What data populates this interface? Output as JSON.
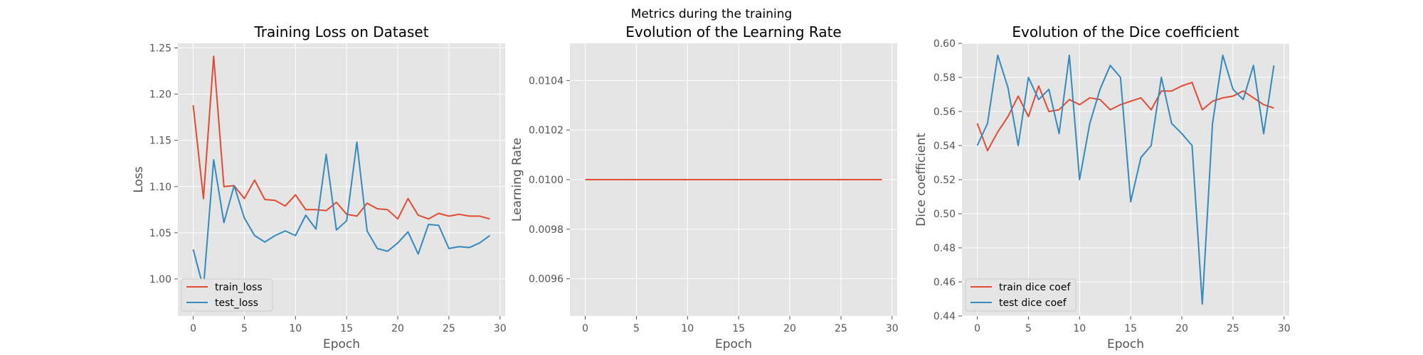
{
  "figure": {
    "suptitle": "Metrics during the training"
  },
  "colors": {
    "train": "#E24A33",
    "test": "#348ABD",
    "panel_bg": "#E5E5E5",
    "grid": "#FFFFFF",
    "tick_text": "#555555"
  },
  "chart_data": [
    {
      "type": "line",
      "title": "Training Loss on Dataset",
      "xlabel": "Epoch",
      "ylabel": "Loss",
      "xlim": [
        -1.5,
        30.5
      ],
      "ylim": [
        0.96,
        1.255
      ],
      "xticks": [
        0,
        5,
        10,
        15,
        20,
        25,
        30
      ],
      "yticks": [
        1.0,
        1.05,
        1.1,
        1.15,
        1.2,
        1.25
      ],
      "ytick_decimals": 2,
      "grid": true,
      "legend": "lower-left",
      "x": [
        0,
        1,
        2,
        3,
        4,
        5,
        6,
        7,
        8,
        9,
        10,
        11,
        12,
        13,
        14,
        15,
        16,
        17,
        18,
        19,
        20,
        21,
        22,
        23,
        24,
        25,
        26,
        27,
        28,
        29
      ],
      "series": [
        {
          "name": "train_loss",
          "color": "#E24A33",
          "values": [
            1.188,
            1.087,
            1.241,
            1.1,
            1.101,
            1.087,
            1.107,
            1.086,
            1.085,
            1.079,
            1.091,
            1.075,
            1.075,
            1.074,
            1.083,
            1.07,
            1.068,
            1.082,
            1.076,
            1.075,
            1.065,
            1.087,
            1.069,
            1.065,
            1.071,
            1.068,
            1.07,
            1.068,
            1.068,
            1.065
          ]
        },
        {
          "name": "test_loss",
          "color": "#348ABD",
          "values": [
            1.032,
            0.99,
            1.129,
            1.061,
            1.101,
            1.066,
            1.047,
            1.04,
            1.047,
            1.052,
            1.047,
            1.069,
            1.054,
            1.135,
            1.053,
            1.063,
            1.148,
            1.052,
            1.033,
            1.03,
            1.039,
            1.051,
            1.027,
            1.059,
            1.058,
            1.033,
            1.035,
            1.034,
            1.039,
            1.047
          ]
        }
      ]
    },
    {
      "type": "line",
      "title": "Evolution of the Learning Rate",
      "xlabel": "Epoch",
      "ylabel": "Learning Rate",
      "xlim": [
        -1.5,
        30.5
      ],
      "ylim": [
        0.00945,
        0.01055
      ],
      "xticks": [
        0,
        5,
        10,
        15,
        20,
        25,
        30
      ],
      "yticks": [
        0.0096,
        0.0098,
        0.01,
        0.0102,
        0.0104
      ],
      "ytick_decimals": 4,
      "grid": true,
      "x": [
        0,
        1,
        2,
        3,
        4,
        5,
        6,
        7,
        8,
        9,
        10,
        11,
        12,
        13,
        14,
        15,
        16,
        17,
        18,
        19,
        20,
        21,
        22,
        23,
        24,
        25,
        26,
        27,
        28,
        29
      ],
      "series": [
        {
          "color": "#E24A33",
          "values": [
            0.01,
            0.01,
            0.01,
            0.01,
            0.01,
            0.01,
            0.01,
            0.01,
            0.01,
            0.01,
            0.01,
            0.01,
            0.01,
            0.01,
            0.01,
            0.01,
            0.01,
            0.01,
            0.01,
            0.01,
            0.01,
            0.01,
            0.01,
            0.01,
            0.01,
            0.01,
            0.01,
            0.01,
            0.01,
            0.01
          ]
        }
      ]
    },
    {
      "type": "line",
      "title": "Evolution of the Dice coefficient",
      "xlabel": "Epoch",
      "ylabel": "Dice coefficient",
      "xlim": [
        -1.5,
        30.5
      ],
      "ylim": [
        0.44,
        0.6
      ],
      "xticks": [
        0,
        5,
        10,
        15,
        20,
        25,
        30
      ],
      "yticks": [
        0.44,
        0.46,
        0.48,
        0.5,
        0.52,
        0.54,
        0.56,
        0.58,
        0.6
      ],
      "ytick_decimals": 2,
      "grid": true,
      "legend": "lower-left",
      "x": [
        0,
        1,
        2,
        3,
        4,
        5,
        6,
        7,
        8,
        9,
        10,
        11,
        12,
        13,
        14,
        15,
        16,
        17,
        18,
        19,
        20,
        21,
        22,
        23,
        24,
        25,
        26,
        27,
        28,
        29
      ],
      "series": [
        {
          "name": "train dice coef",
          "color": "#E24A33",
          "values": [
            0.553,
            0.537,
            0.548,
            0.557,
            0.569,
            0.557,
            0.575,
            0.56,
            0.561,
            0.567,
            0.564,
            0.568,
            0.567,
            0.561,
            0.564,
            0.566,
            0.568,
            0.561,
            0.572,
            0.572,
            0.575,
            0.577,
            0.561,
            0.566,
            0.568,
            0.569,
            0.572,
            0.568,
            0.564,
            0.562
          ]
        },
        {
          "name": "test dice coef",
          "color": "#348ABD",
          "values": [
            0.54,
            0.553,
            0.593,
            0.574,
            0.54,
            0.58,
            0.567,
            0.573,
            0.547,
            0.593,
            0.52,
            0.553,
            0.573,
            0.587,
            0.58,
            0.507,
            0.533,
            0.54,
            0.58,
            0.553,
            0.547,
            0.54,
            0.447,
            0.553,
            0.593,
            0.573,
            0.567,
            0.587,
            0.547,
            0.587
          ]
        }
      ]
    }
  ]
}
